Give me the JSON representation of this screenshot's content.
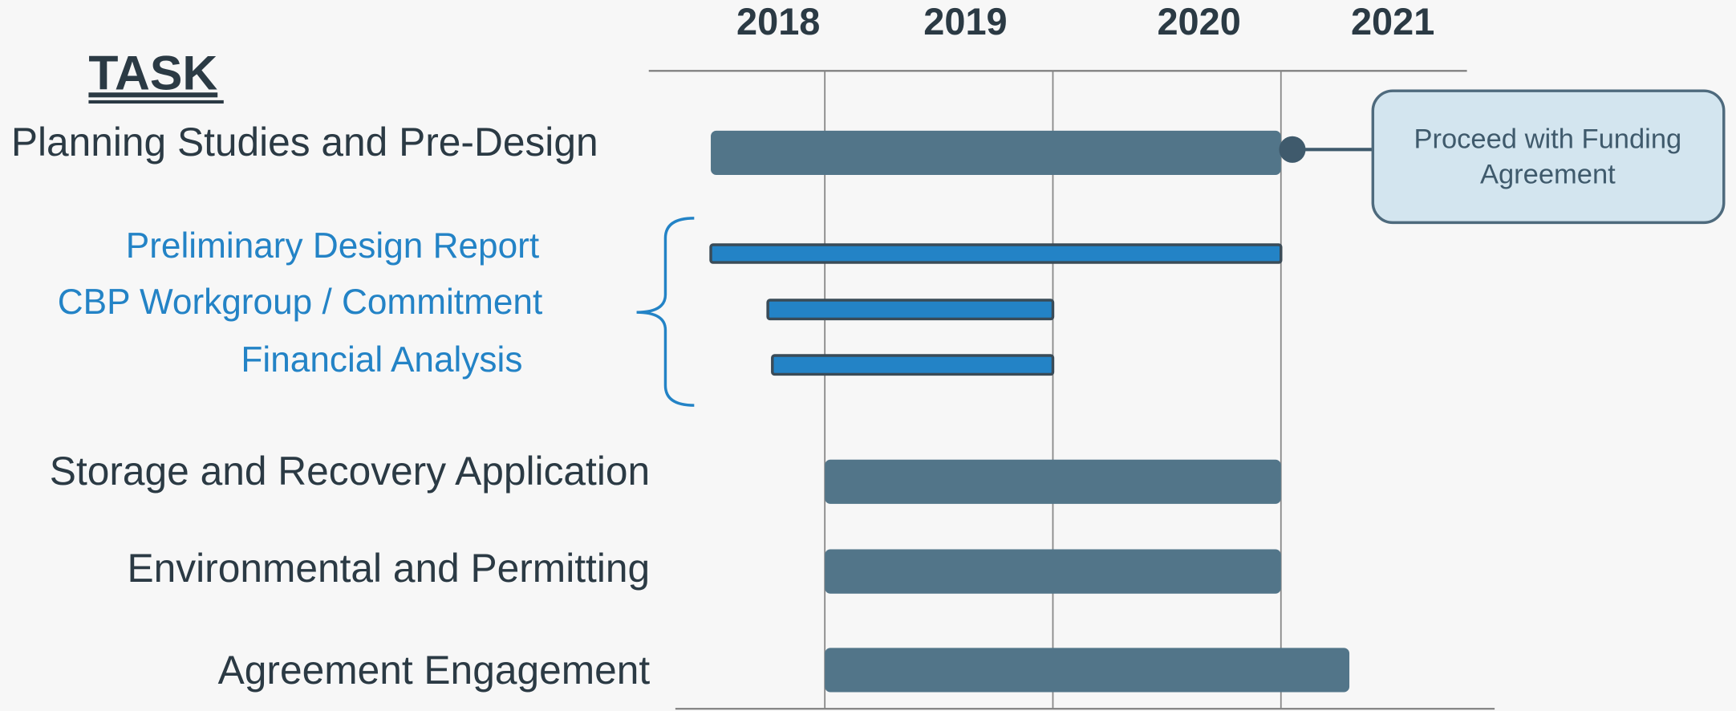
{
  "chart_data": {
    "type": "gantt",
    "header": "TASK",
    "xlim": [
      2018,
      2022
    ],
    "year_labels": [
      2018,
      2019,
      2020,
      2021
    ],
    "gridlines": [
      2019,
      2020,
      2021
    ],
    "tasks": [
      {
        "name": "Planning Studies and Pre-Design",
        "level": "main",
        "start": 2018.5,
        "end": 2021.0,
        "color": "#527589"
      },
      {
        "name": "Preliminary Design Report",
        "level": "sub",
        "start": 2018.5,
        "end": 2021.0,
        "color": "#2383c6"
      },
      {
        "name": "CBP Workgroup / Commitment",
        "level": "sub",
        "start": 2018.75,
        "end": 2020.0,
        "color": "#2383c6"
      },
      {
        "name": "Financial Analysis",
        "level": "sub",
        "start": 2018.77,
        "end": 2020.0,
        "color": "#2383c6"
      },
      {
        "name": "Storage and Recovery Application",
        "level": "main",
        "start": 2019.0,
        "end": 2021.0,
        "color": "#527589"
      },
      {
        "name": "Environmental and Permitting",
        "level": "main",
        "start": 2019.0,
        "end": 2021.0,
        "color": "#527589"
      },
      {
        "name": "Agreement Engagement",
        "level": "main",
        "start": 2019.0,
        "end": 2021.3,
        "color": "#527589"
      }
    ],
    "milestone": {
      "value": 2021.05,
      "color": "#3f5a6c",
      "annotation_lines": [
        "Proceed with Funding",
        "Agreement"
      ]
    }
  }
}
